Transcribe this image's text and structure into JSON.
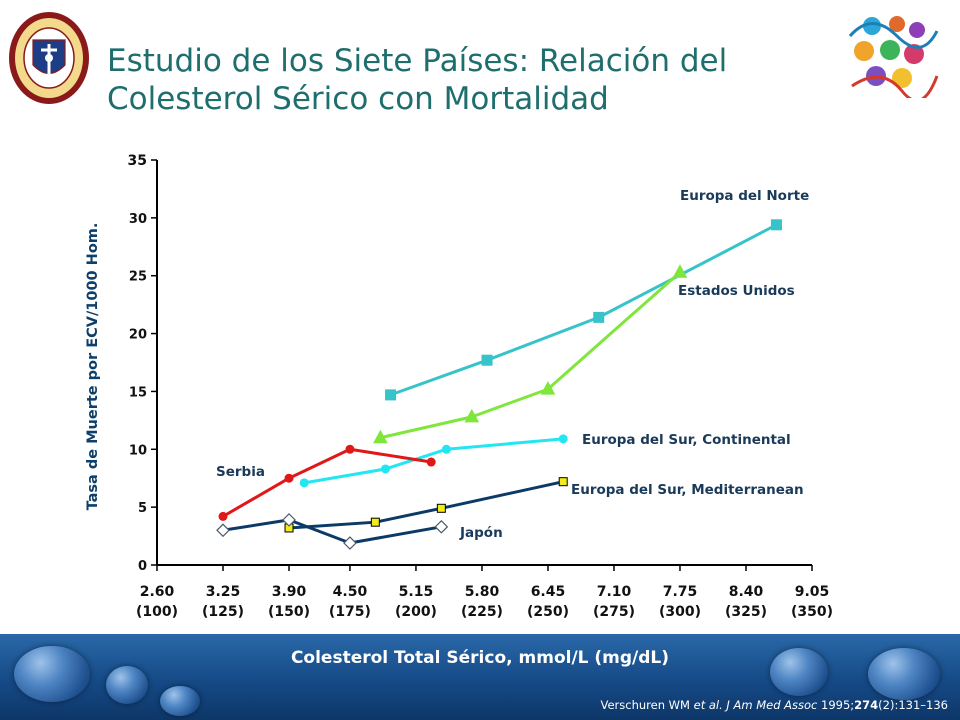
{
  "slide": {
    "title": "Estudio de los Siete Países: Relación del Colesterol Sérico con Mortalidad",
    "citation": {
      "authors": "Verschuren WM ",
      "et_al": "et al.",
      "journal": " J Am Med Assoc",
      "year": " 1995;",
      "volume": "274",
      "pages": "(2):131–136"
    }
  },
  "colors": {
    "title": "#1f6e6e",
    "europa_norte": "#36c3c9",
    "estados_unidos": "#7fe63b",
    "sur_continental": "#22e6f2",
    "serbia": "#e01818",
    "sur_mediterranean": "#0b3a66",
    "japon": "#0b3a66",
    "footer": "#154a86"
  },
  "chart_data": {
    "type": "line",
    "title": "",
    "xlabel": "Colesterol Total Sérico, mmol/L (mg/dL)",
    "ylabel": "Tasa de Muerte por ECV/1000 Hom.",
    "ylim": [
      0,
      35
    ],
    "yticks": [
      "0",
      "5",
      "10",
      "15",
      "20",
      "25",
      "30",
      "35"
    ],
    "xlim": [
      2.6,
      9.05
    ],
    "xticks": [
      {
        "mmol": "2.60",
        "mgdl": "(100)"
      },
      {
        "mmol": "3.25",
        "mgdl": "(125)"
      },
      {
        "mmol": "3.90",
        "mgdl": "(150)"
      },
      {
        "mmol": "4.50",
        "mgdl": "(175)"
      },
      {
        "mmol": "5.15",
        "mgdl": "(200)"
      },
      {
        "mmol": "5.80",
        "mgdl": "(225)"
      },
      {
        "mmol": "6.45",
        "mgdl": "(250)"
      },
      {
        "mmol": "7.10",
        "mgdl": "(275)"
      },
      {
        "mmol": "7.75",
        "mgdl": "(300)"
      },
      {
        "mmol": "8.40",
        "mgdl": "(325)"
      },
      {
        "mmol": "9.05",
        "mgdl": "(350)"
      }
    ],
    "grid": false,
    "series": [
      {
        "name": "Europa del Norte",
        "key": "europa_norte",
        "marker": "square",
        "x": [
          4.9,
          5.85,
          6.95,
          8.7
        ],
        "y": [
          14.7,
          17.7,
          21.4,
          29.4
        ]
      },
      {
        "name": "Estados Unidos",
        "key": "estados_unidos",
        "marker": "triangle",
        "x": [
          4.8,
          5.7,
          6.45,
          7.75
        ],
        "y": [
          11.0,
          12.8,
          15.2,
          25.3
        ]
      },
      {
        "name": "Europa del Sur, Continental",
        "key": "sur_continental",
        "marker": "circle",
        "x": [
          4.05,
          4.85,
          5.45,
          6.6
        ],
        "y": [
          7.1,
          8.3,
          10.0,
          10.9
        ]
      },
      {
        "name": "Serbia",
        "key": "serbia",
        "marker": "circle",
        "x": [
          3.25,
          3.9,
          4.5,
          5.3
        ],
        "y": [
          4.2,
          7.5,
          10.0,
          8.9
        ]
      },
      {
        "name": "Europa del Sur, Mediterranean",
        "key": "sur_mediterranean",
        "marker": "square",
        "x": [
          3.9,
          4.75,
          5.4,
          6.6
        ],
        "y": [
          3.2,
          3.7,
          4.9,
          7.2
        ]
      },
      {
        "name": "Japón",
        "key": "japon",
        "marker": "diamond",
        "x": [
          3.25,
          3.9,
          4.5,
          5.4
        ],
        "y": [
          3.0,
          3.9,
          1.9,
          3.3
        ]
      }
    ]
  }
}
